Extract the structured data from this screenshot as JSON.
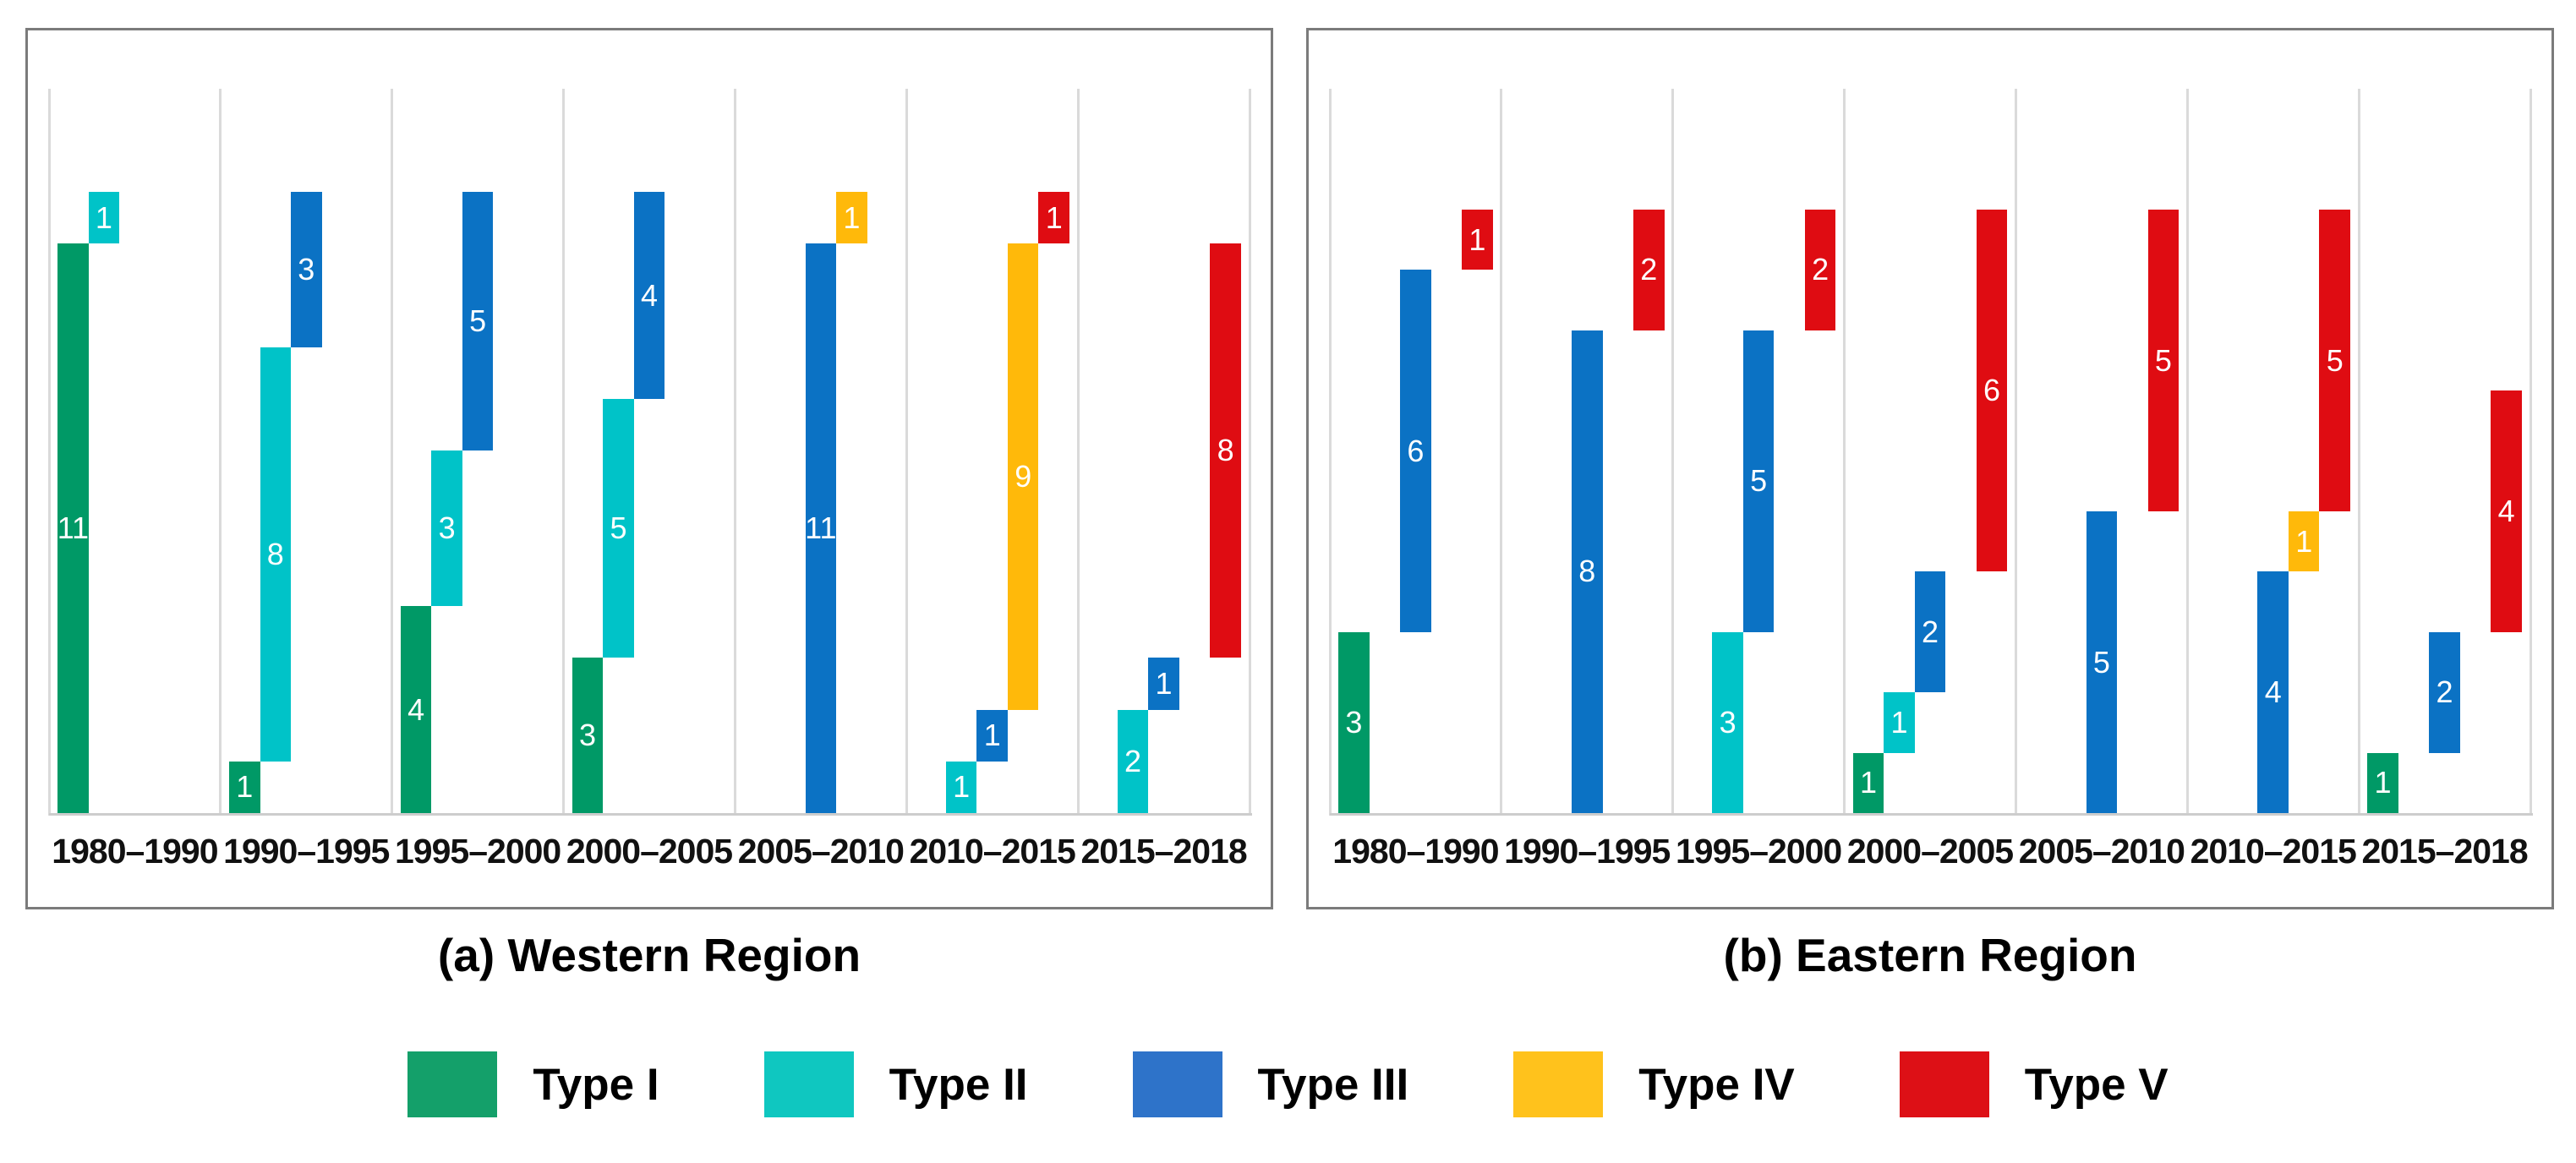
{
  "captions": {
    "west": "(a) Western Region",
    "east": "(b) Eastern Region"
  },
  "legend": {
    "items": [
      {
        "label": "Type I",
        "color": "#14a06a"
      },
      {
        "label": "Type II",
        "color": "#0fc7c0"
      },
      {
        "label": "Type III",
        "color": "#2e73c9"
      },
      {
        "label": "Type IV",
        "color": "#ffc21c"
      },
      {
        "label": "Type V",
        "color": "#dd1016"
      }
    ]
  },
  "series_colors": {
    "Type I": "#009966",
    "Type II": "#00c3c8",
    "Type III": "#0b72c4",
    "Type IV": "#ffb90a",
    "Type V": "#df0c12"
  },
  "value_label_color": "#ffffff",
  "gridline_color": "#dadada",
  "panel_border_color": "#7b7b7b",
  "chart_data": [
    {
      "type": "bar",
      "subtype": "floating-waterfall-stacked",
      "title": "(a) Western Region",
      "categories": [
        "1980–1990",
        "1990–1995",
        "1995–2000",
        "2000–2005",
        "2005–2010",
        "2010–2015",
        "2015–2018"
      ],
      "series_order": [
        "Type I",
        "Type II",
        "Type III",
        "Type IV",
        "Type V"
      ],
      "xlabel": "",
      "ylabel": "",
      "ylim": [
        0,
        12
      ],
      "grid": "vertical-column-separators",
      "legend_position": "bottom-shared",
      "columns": [
        {
          "category": "1980–1990",
          "segments": [
            {
              "series": "Type I",
              "value": 11
            },
            {
              "series": "Type II",
              "value": 1
            }
          ]
        },
        {
          "category": "1990–1995",
          "segments": [
            {
              "series": "Type I",
              "value": 1
            },
            {
              "series": "Type II",
              "value": 8
            },
            {
              "series": "Type III",
              "value": 3
            }
          ]
        },
        {
          "category": "1995–2000",
          "segments": [
            {
              "series": "Type I",
              "value": 4
            },
            {
              "series": "Type II",
              "value": 3
            },
            {
              "series": "Type III",
              "value": 5
            }
          ]
        },
        {
          "category": "2000–2005",
          "segments": [
            {
              "series": "Type I",
              "value": 3
            },
            {
              "series": "Type II",
              "value": 5
            },
            {
              "series": "Type III",
              "value": 4
            }
          ]
        },
        {
          "category": "2005–2010",
          "segments": [
            {
              "series": "Type III",
              "value": 11
            },
            {
              "series": "Type IV",
              "value": 1
            }
          ]
        },
        {
          "category": "2010–2015",
          "segments": [
            {
              "series": "Type II",
              "value": 1
            },
            {
              "series": "Type III",
              "value": 1
            },
            {
              "series": "Type IV",
              "value": 9
            },
            {
              "series": "Type V",
              "value": 1
            }
          ]
        },
        {
          "category": "2015–2018",
          "segments": [
            {
              "series": "Type II",
              "value": 2
            },
            {
              "series": "Type III",
              "value": 1
            },
            {
              "series": "Type V",
              "value": 8
            }
          ]
        }
      ]
    },
    {
      "type": "bar",
      "subtype": "floating-waterfall-stacked",
      "title": "(b) Eastern Region",
      "categories": [
        "1980–1990",
        "1990–1995",
        "1995–2000",
        "2000–2005",
        "2005–2010",
        "2010–2015",
        "2015–2018"
      ],
      "series_order": [
        "Type I",
        "Type II",
        "Type III",
        "Type IV",
        "Type V"
      ],
      "xlabel": "",
      "ylabel": "",
      "ylim": [
        0,
        10
      ],
      "grid": "vertical-column-separators",
      "legend_position": "bottom-shared",
      "columns": [
        {
          "category": "1980–1990",
          "segments": [
            {
              "series": "Type I",
              "value": 3
            },
            {
              "series": "Type III",
              "value": 6
            },
            {
              "series": "Type V",
              "value": 1
            }
          ]
        },
        {
          "category": "1990–1995",
          "segments": [
            {
              "series": "Type III",
              "value": 8
            },
            {
              "series": "Type V",
              "value": 2
            }
          ]
        },
        {
          "category": "1995–2000",
          "segments": [
            {
              "series": "Type II",
              "value": 3
            },
            {
              "series": "Type III",
              "value": 5
            },
            {
              "series": "Type V",
              "value": 2
            }
          ]
        },
        {
          "category": "2000–2005",
          "segments": [
            {
              "series": "Type I",
              "value": 1
            },
            {
              "series": "Type II",
              "value": 1
            },
            {
              "series": "Type III",
              "value": 2
            },
            {
              "series": "Type V",
              "value": 6
            }
          ]
        },
        {
          "category": "2005–2010",
          "segments": [
            {
              "series": "Type III",
              "value": 5
            },
            {
              "series": "Type V",
              "value": 5
            }
          ]
        },
        {
          "category": "2010–2015",
          "segments": [
            {
              "series": "Type III",
              "value": 4
            },
            {
              "series": "Type IV",
              "value": 1
            },
            {
              "series": "Type V",
              "value": 5
            }
          ]
        },
        {
          "category": "2015–2018",
          "segments": [
            {
              "series": "Type I",
              "value": 1
            },
            {
              "series": "Type III",
              "value": 2
            },
            {
              "series": "Type V",
              "value": 4
            }
          ]
        }
      ]
    }
  ]
}
